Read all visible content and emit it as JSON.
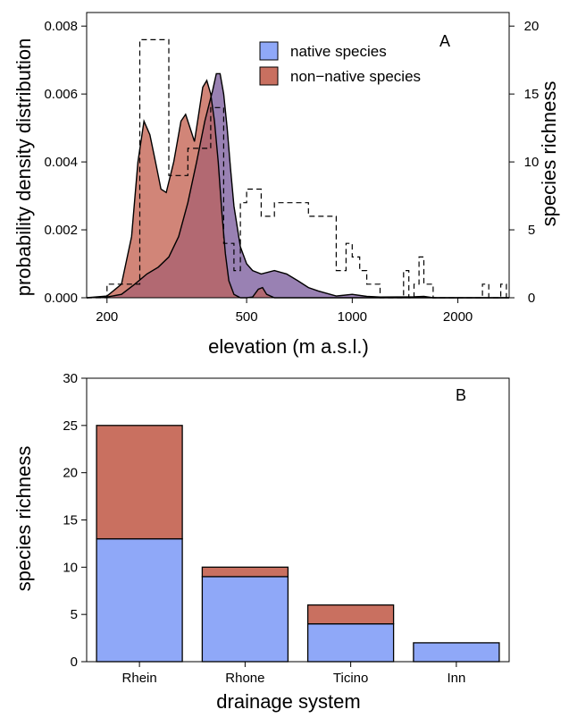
{
  "chart_data": [
    {
      "type": "area",
      "panel_label": "A",
      "xlabel": "elevation (m a.s.l.)",
      "ylabel": "probability density distribution",
      "y2label": "species richness",
      "xscale": "log",
      "xlim": [
        175,
        2800
      ],
      "ylim": [
        0,
        0.0084
      ],
      "y2lim": [
        0,
        21
      ],
      "xticks": [
        200,
        500,
        1000,
        2000
      ],
      "xtick_labels": [
        "200",
        "500",
        "1000",
        "2000"
      ],
      "yticks": [
        0,
        0.002,
        0.004,
        0.006,
        0.008
      ],
      "ytick_labels": [
        "0.000",
        "0.002",
        "0.004",
        "0.006",
        "0.008"
      ],
      "y2ticks": [
        0,
        5,
        10,
        15,
        20
      ],
      "y2tick_labels": [
        "0",
        "5",
        "10",
        "15",
        "20"
      ],
      "legend_position": "top-right",
      "colors": {
        "native": "#8fa8f8",
        "non_native": "#c97060",
        "overlap": "#a45a6e"
      },
      "series": [
        {
          "name": "native species",
          "axis": "left",
          "style": "filled-density",
          "x": [
            175,
            200,
            220,
            240,
            260,
            280,
            300,
            320,
            340,
            360,
            380,
            400,
            410,
            420,
            430,
            440,
            450,
            460,
            480,
            500,
            520,
            550,
            600,
            650,
            700,
            750,
            800,
            900,
            1000,
            1100,
            1200,
            1500,
            1600,
            1700,
            2000,
            2500,
            2800
          ],
          "y": [
            0.0,
            2e-05,
            0.0001,
            0.0004,
            0.0007,
            0.0009,
            0.0012,
            0.0018,
            0.0028,
            0.004,
            0.0052,
            0.0061,
            0.0066,
            0.0066,
            0.006,
            0.005,
            0.0038,
            0.0027,
            0.0015,
            0.001,
            0.0008,
            0.0007,
            0.0008,
            0.0007,
            0.0005,
            0.0003,
            0.0002,
            5e-05,
            0.0001,
            4e-05,
            2e-05,
            3e-05,
            4e-05,
            0.0,
            0.0,
            0.0,
            0.0
          ]
        },
        {
          "name": "non−native species",
          "axis": "left",
          "style": "filled-density",
          "x": [
            175,
            200,
            220,
            235,
            245,
            255,
            265,
            275,
            285,
            295,
            310,
            325,
            335,
            345,
            355,
            365,
            375,
            385,
            395,
            405,
            415,
            425,
            435,
            445,
            460,
            480,
            500,
            520,
            540,
            555,
            570,
            600,
            2800
          ],
          "y": [
            0.0,
            5e-05,
            0.0004,
            0.0018,
            0.004,
            0.0052,
            0.0048,
            0.004,
            0.0032,
            0.0031,
            0.004,
            0.0052,
            0.0054,
            0.005,
            0.0046,
            0.0054,
            0.0062,
            0.0064,
            0.006,
            0.0052,
            0.004,
            0.0025,
            0.0013,
            0.0005,
            0.0001,
            0.0,
            0.0,
            2e-05,
            0.00025,
            0.0003,
            0.0001,
            0.0,
            0.0
          ]
        },
        {
          "name": "species richness",
          "axis": "right",
          "style": "dashed-step",
          "x": [
            175,
            200,
            248,
            300,
            340,
            395,
            430,
            460,
            480,
            500,
            550,
            600,
            650,
            750,
            900,
            960,
            1000,
            1050,
            1100,
            1200,
            1400,
            1450,
            1500,
            1550,
            1600,
            1700,
            1850,
            2050,
            2200,
            2350,
            2450,
            2550,
            2650,
            2750,
            2800
          ],
          "y": [
            0,
            1,
            19,
            9,
            11,
            14,
            4,
            2,
            7,
            8,
            6,
            7,
            7,
            6,
            2,
            4,
            3,
            2,
            1,
            0,
            2,
            0,
            1,
            3,
            1,
            0,
            0,
            0,
            0,
            1,
            0,
            0,
            1,
            0,
            0
          ]
        }
      ]
    },
    {
      "type": "bar",
      "stacked": true,
      "panel_label": "B",
      "xlabel": "drainage system",
      "ylabel": "species richness",
      "ylim": [
        0,
        30
      ],
      "yticks": [
        0,
        5,
        10,
        15,
        20,
        25,
        30
      ],
      "ytick_labels": [
        "0",
        "5",
        "10",
        "15",
        "20",
        "25",
        "30"
      ],
      "categories": [
        "Rhein",
        "Rhone",
        "Ticino",
        "Inn"
      ],
      "colors": {
        "native": "#8fa8f8",
        "non_native": "#c97060"
      },
      "series": [
        {
          "key": "native",
          "values": [
            13,
            9,
            4,
            2
          ]
        },
        {
          "key": "non_native",
          "values": [
            12,
            1,
            2,
            0
          ]
        }
      ]
    }
  ]
}
